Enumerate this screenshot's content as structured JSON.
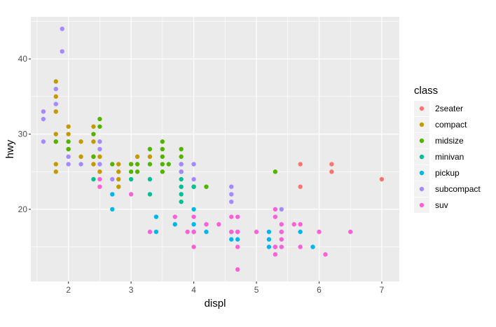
{
  "chart_data": {
    "type": "scatter",
    "title": "",
    "xlabel": "displ",
    "ylabel": "hwy",
    "xlim": [
      1.4,
      7.28
    ],
    "ylim": [
      10.4,
      45.6
    ],
    "x_ticks": [
      2,
      3,
      4,
      5,
      6,
      7
    ],
    "y_ticks": [
      20,
      30,
      40
    ],
    "grid": true,
    "legend": {
      "title": "class",
      "position": "right",
      "entries": [
        {
          "label": "2seater",
          "color": "#F8766D"
        },
        {
          "label": "compact",
          "color": "#C49A00"
        },
        {
          "label": "midsize",
          "color": "#53B400"
        },
        {
          "label": "minivan",
          "color": "#00C094"
        },
        {
          "label": "pickup",
          "color": "#00B6EB"
        },
        {
          "label": "subcompact",
          "color": "#A58AFF"
        },
        {
          "label": "suv",
          "color": "#FB61D7"
        }
      ]
    },
    "series": [
      {
        "name": "2seater",
        "color": "#F8766D",
        "points": [
          [
            5.7,
            26
          ],
          [
            5.7,
            23
          ],
          [
            6.2,
            26
          ],
          [
            6.2,
            25
          ],
          [
            7.0,
            24
          ]
        ]
      },
      {
        "name": "compact",
        "color": "#C49A00",
        "points": [
          [
            1.8,
            37
          ],
          [
            1.8,
            35
          ],
          [
            1.8,
            33
          ],
          [
            1.8,
            30
          ],
          [
            1.8,
            29
          ],
          [
            1.8,
            26
          ],
          [
            1.8,
            25
          ],
          [
            2.0,
            31
          ],
          [
            2.0,
            30
          ],
          [
            2.0,
            28
          ],
          [
            2.2,
            29
          ],
          [
            2.2,
            27
          ],
          [
            2.4,
            31
          ],
          [
            2.4,
            29
          ],
          [
            2.4,
            27
          ],
          [
            2.4,
            26
          ],
          [
            2.5,
            25
          ],
          [
            2.5,
            27
          ],
          [
            2.8,
            26
          ],
          [
            2.8,
            25
          ],
          [
            2.8,
            24
          ],
          [
            2.8,
            23
          ],
          [
            3.0,
            26
          ],
          [
            3.1,
            27
          ],
          [
            3.3,
            27
          ]
        ]
      },
      {
        "name": "midsize",
        "color": "#53B400",
        "points": [
          [
            1.8,
            29
          ],
          [
            2.0,
            29
          ],
          [
            2.0,
            28
          ],
          [
            2.4,
            30
          ],
          [
            2.4,
            27
          ],
          [
            2.5,
            32
          ],
          [
            2.5,
            31
          ],
          [
            2.7,
            26
          ],
          [
            3.0,
            26
          ],
          [
            3.0,
            25
          ],
          [
            3.1,
            26
          ],
          [
            3.1,
            25
          ],
          [
            3.3,
            28
          ],
          [
            3.3,
            26
          ],
          [
            3.5,
            29
          ],
          [
            3.5,
            28
          ],
          [
            3.5,
            27
          ],
          [
            3.5,
            26
          ],
          [
            3.5,
            25
          ],
          [
            3.6,
            26
          ],
          [
            3.8,
            28
          ],
          [
            3.8,
            27
          ],
          [
            3.8,
            26
          ],
          [
            3.8,
            25
          ],
          [
            4.0,
            23
          ],
          [
            4.2,
            23
          ],
          [
            5.3,
            25
          ]
        ]
      },
      {
        "name": "minivan",
        "color": "#00C094",
        "points": [
          [
            2.4,
            24
          ],
          [
            3.0,
            24
          ],
          [
            3.3,
            24
          ],
          [
            3.3,
            22
          ],
          [
            3.8,
            24
          ],
          [
            3.8,
            23
          ],
          [
            3.8,
            22
          ],
          [
            3.8,
            21
          ],
          [
            4.0,
            23
          ]
        ]
      },
      {
        "name": "pickup",
        "color": "#00B6EB",
        "points": [
          [
            2.7,
            22
          ],
          [
            2.7,
            20
          ],
          [
            3.4,
            19
          ],
          [
            3.4,
            17
          ],
          [
            3.7,
            18
          ],
          [
            4.0,
            20
          ],
          [
            4.0,
            18
          ],
          [
            4.0,
            17
          ],
          [
            4.2,
            17
          ],
          [
            4.6,
            17
          ],
          [
            4.6,
            16
          ],
          [
            4.7,
            17
          ],
          [
            4.7,
            16
          ],
          [
            5.2,
            17
          ],
          [
            5.2,
            16
          ],
          [
            5.2,
            15
          ],
          [
            5.3,
            15
          ],
          [
            5.4,
            17
          ],
          [
            5.7,
            17
          ],
          [
            5.9,
            15
          ]
        ]
      },
      {
        "name": "subcompact",
        "color": "#A58AFF",
        "points": [
          [
            1.6,
            33
          ],
          [
            1.6,
            32
          ],
          [
            1.6,
            29
          ],
          [
            1.8,
            36
          ],
          [
            1.8,
            34
          ],
          [
            1.9,
            44
          ],
          [
            1.9,
            41
          ],
          [
            2.0,
            27
          ],
          [
            2.0,
            26
          ],
          [
            2.2,
            26
          ],
          [
            2.5,
            29
          ],
          [
            2.5,
            28
          ],
          [
            2.5,
            26
          ],
          [
            2.7,
            24
          ],
          [
            3.8,
            26
          ],
          [
            3.8,
            25
          ],
          [
            4.0,
            26
          ],
          [
            4.0,
            24
          ],
          [
            4.6,
            23
          ],
          [
            4.6,
            22
          ],
          [
            4.6,
            21
          ],
          [
            5.4,
            20
          ]
        ]
      },
      {
        "name": "suv",
        "color": "#FB61D7",
        "points": [
          [
            2.5,
            24
          ],
          [
            2.5,
            23
          ],
          [
            3.0,
            22
          ],
          [
            3.3,
            17
          ],
          [
            3.7,
            19
          ],
          [
            3.9,
            17
          ],
          [
            4.0,
            19
          ],
          [
            4.0,
            17
          ],
          [
            4.0,
            15
          ],
          [
            4.2,
            18
          ],
          [
            4.4,
            18
          ],
          [
            4.6,
            19
          ],
          [
            4.6,
            17
          ],
          [
            4.7,
            19
          ],
          [
            4.7,
            17
          ],
          [
            4.7,
            15
          ],
          [
            4.7,
            12
          ],
          [
            5.0,
            17
          ],
          [
            5.3,
            20
          ],
          [
            5.3,
            19
          ],
          [
            5.3,
            15
          ],
          [
            5.3,
            14
          ],
          [
            5.4,
            18
          ],
          [
            5.4,
            17
          ],
          [
            5.4,
            16
          ],
          [
            5.4,
            15
          ],
          [
            5.6,
            18
          ],
          [
            5.7,
            18
          ],
          [
            5.7,
            15
          ],
          [
            6.0,
            17
          ],
          [
            6.1,
            14
          ],
          [
            6.5,
            17
          ]
        ]
      }
    ]
  }
}
